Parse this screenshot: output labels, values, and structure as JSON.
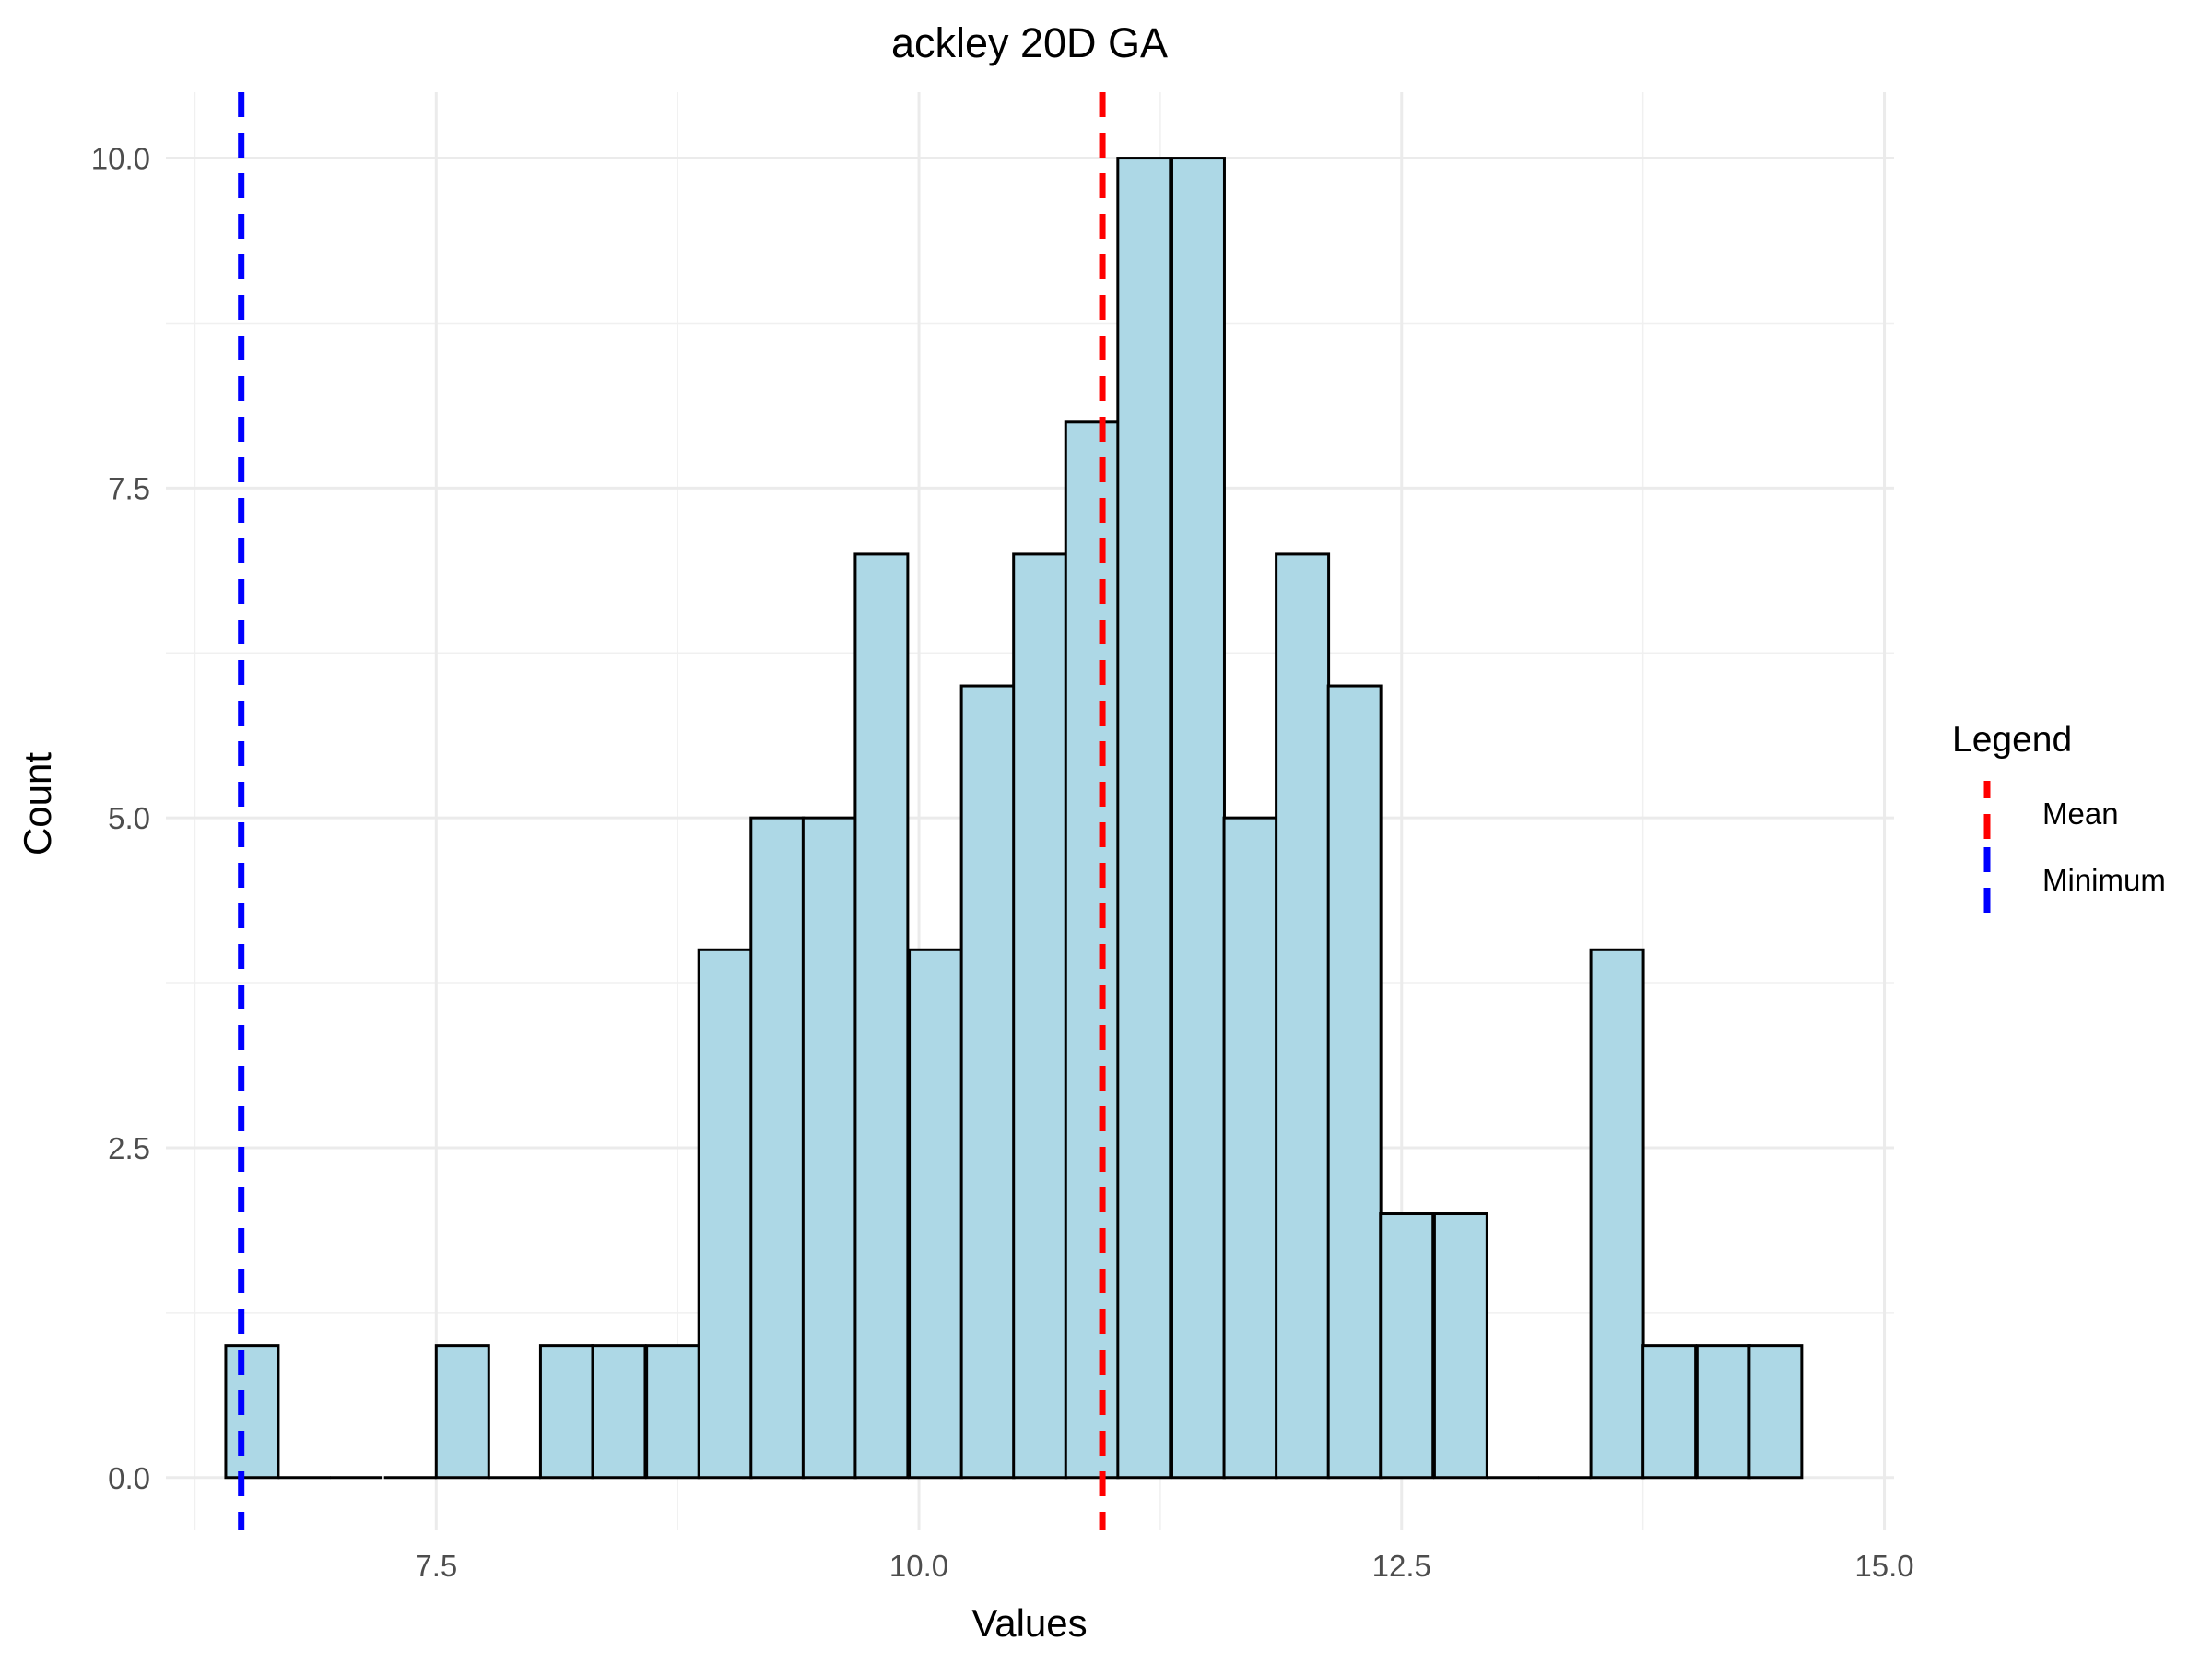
{
  "chart_data": {
    "type": "bar",
    "title": "ackley 20D GA",
    "xlabel": "Values",
    "ylabel": "Count",
    "xlim": [
      6.1,
      15.05
    ],
    "ylim": [
      -0.4,
      10.5
    ],
    "x_ticks": [
      7.5,
      10.0,
      12.5,
      15.0
    ],
    "x_tick_labels": [
      "7.5",
      "10.0",
      "12.5",
      "15.0"
    ],
    "x_minor_ticks": [
      6.25,
      8.75,
      11.25,
      13.75
    ],
    "y_ticks": [
      0.0,
      2.5,
      5.0,
      7.5,
      10.0
    ],
    "y_tick_labels": [
      "0.0",
      "2.5",
      "5.0",
      "7.5",
      "10.0"
    ],
    "y_minor_ticks": [
      1.25,
      3.75,
      6.25,
      8.75
    ],
    "grid": true,
    "bin_width": 0.272,
    "bin_left_edges": [
      6.41,
      6.68,
      6.95,
      7.23,
      7.5,
      7.77,
      8.04,
      8.31,
      8.59,
      8.86,
      9.13,
      9.4,
      9.67,
      9.95,
      10.22,
      10.49,
      10.76,
      11.03,
      11.31,
      11.58,
      11.85,
      12.12,
      12.39,
      12.67,
      12.94,
      13.21,
      13.48,
      13.75,
      14.03,
      14.3
    ],
    "counts": [
      1,
      0,
      0,
      0,
      1,
      0,
      1,
      1,
      1,
      4,
      5,
      5,
      7,
      4,
      6,
      7,
      8,
      10,
      10,
      5,
      7,
      6,
      2,
      2,
      0,
      0,
      4,
      1,
      1,
      1
    ],
    "bar_fill": "#add8e6",
    "bar_stroke": "#000000",
    "reference_lines": [
      {
        "name": "Mean",
        "x": 10.95,
        "color": "#ff0000",
        "style": "dashed"
      },
      {
        "name": "Minimum",
        "x": 6.49,
        "color": "#0000ff",
        "style": "dashed"
      }
    ],
    "legend": {
      "title": "Legend",
      "position": "right",
      "entries": [
        {
          "label": "Mean",
          "color": "#ff0000"
        },
        {
          "label": "Minimum",
          "color": "#0000ff"
        }
      ]
    }
  }
}
